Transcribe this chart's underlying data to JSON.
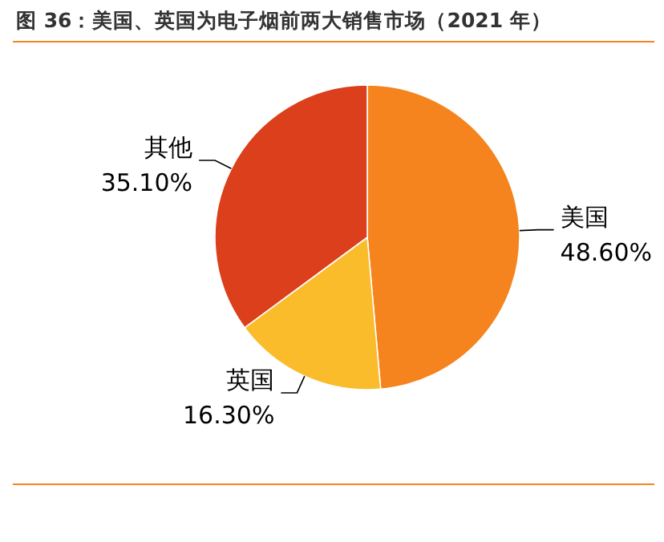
{
  "chart_data": {
    "type": "pie",
    "title": "图 36：美国、英国为电子烟前两大销售市场（2021 年）",
    "categories": [
      "美国",
      "英国",
      "其他"
    ],
    "values": [
      48.6,
      16.3,
      35.1
    ],
    "value_labels": [
      "48.60%",
      "16.30%",
      "35.10%"
    ],
    "colors": [
      "#f5841f",
      "#fbbc2c",
      "#dc3f1c"
    ],
    "legend": false
  }
}
